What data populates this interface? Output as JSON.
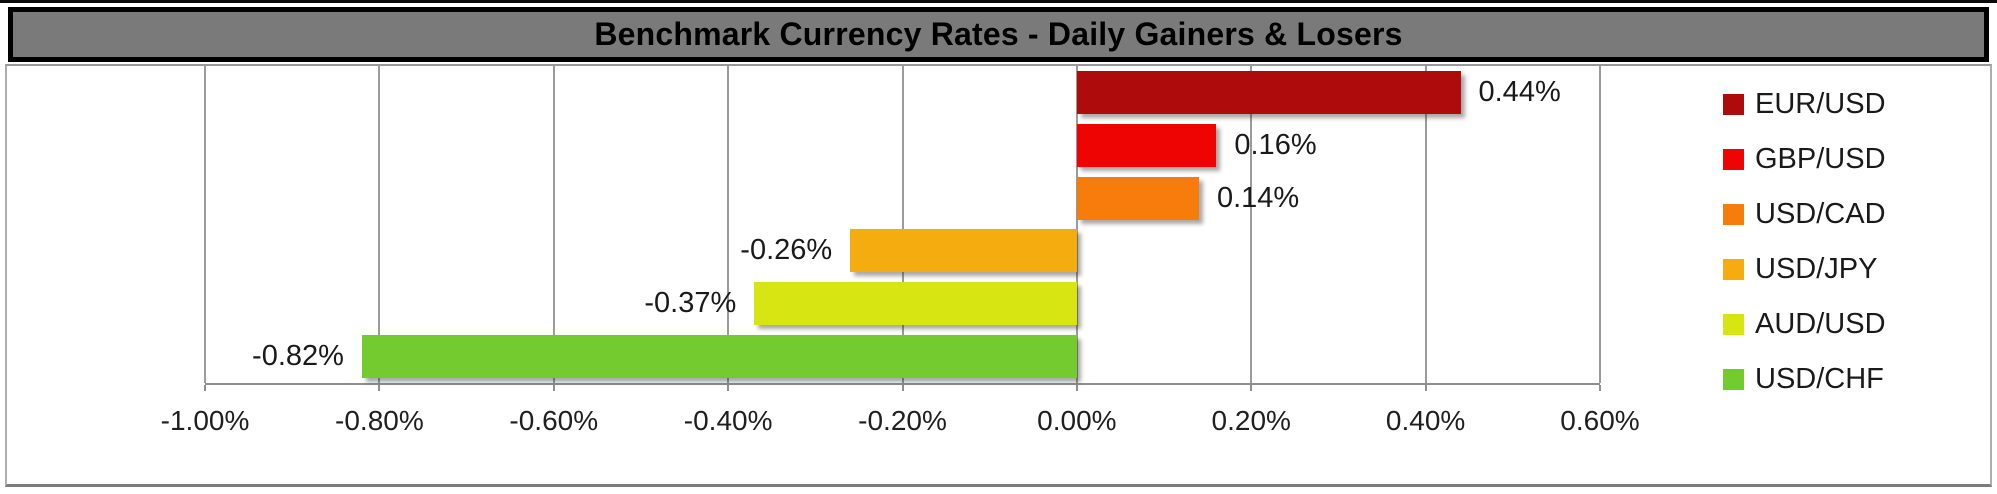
{
  "title": "Benchmark Currency Rates - Daily Gainers & Losers",
  "chart_data": {
    "type": "bar",
    "orientation": "horizontal",
    "title": "Benchmark Currency Rates - Daily Gainers & Losers",
    "categories": [
      "EUR/USD",
      "GBP/USD",
      "USD/CAD",
      "USD/JPY",
      "AUD/USD",
      "USD/CHF"
    ],
    "values": [
      0.44,
      0.16,
      0.14,
      -0.26,
      -0.37,
      -0.82
    ],
    "value_labels": [
      "0.44%",
      "0.16%",
      "0.14%",
      "-0.26%",
      "-0.37%",
      "-0.82%"
    ],
    "bar_colors": [
      "#AE0C0C",
      "#EF0404",
      "#F67D0C",
      "#F5AC0E",
      "#D7E512",
      "#73CB30"
    ],
    "unit": "percent",
    "grid": true,
    "x_axis": {
      "min": -1.0,
      "max": 0.6,
      "step": 0.2,
      "tick_labels": [
        "-1.00%",
        "-0.80%",
        "-0.60%",
        "-0.40%",
        "-0.20%",
        "0.00%",
        "0.20%",
        "0.40%",
        "0.60%"
      ]
    },
    "legend": {
      "position": "right",
      "entries": [
        "EUR/USD",
        "GBP/USD",
        "USD/CAD",
        "USD/JPY",
        "AUD/USD",
        "USD/CHF"
      ]
    }
  },
  "colors": {
    "title_bg": "#7A7A7A",
    "title_text": "#000000",
    "grid_line": "#9B9B9B",
    "axis_line": "#8F8F8F",
    "label_text": "#1A1A1A"
  }
}
